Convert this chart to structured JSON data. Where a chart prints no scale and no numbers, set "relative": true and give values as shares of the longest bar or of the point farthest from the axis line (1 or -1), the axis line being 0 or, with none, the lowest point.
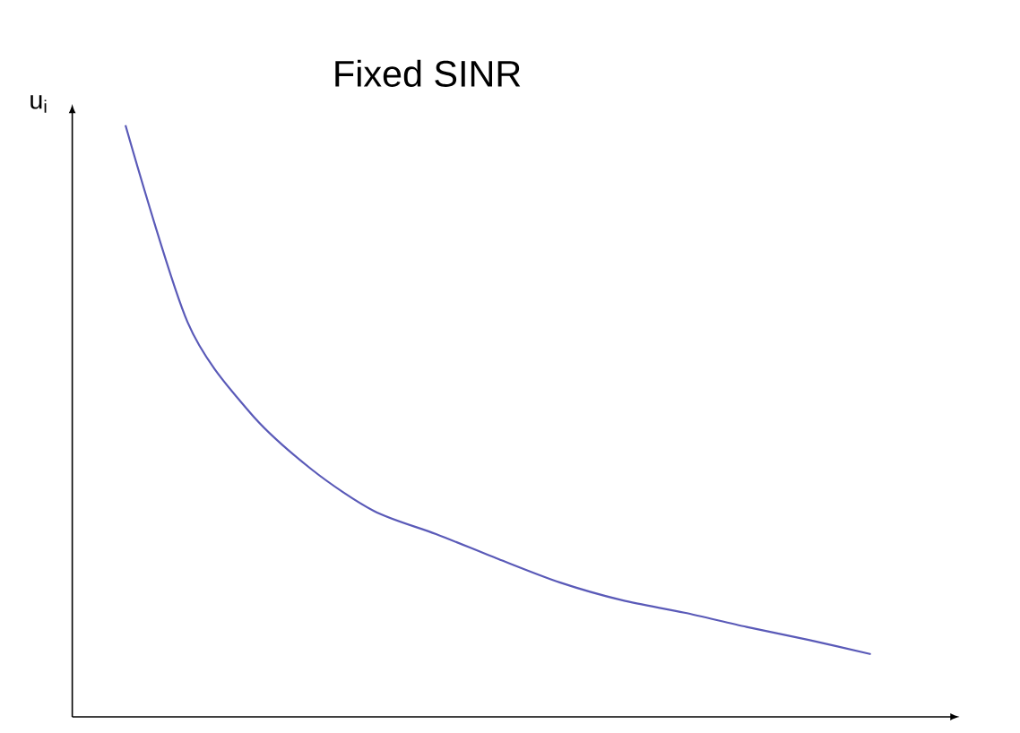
{
  "chart_data": {
    "type": "line",
    "title": "Fixed SINR",
    "ylabel": "u$_{i}$",
    "relative": true,
    "categories": [
      null,
      null,
      null,
      null,
      null,
      null,
      null,
      null,
      null,
      null,
      null,
      null,
      null
    ],
    "series": [
      {
        "color": "#5a5ab8",
        "values": [
          1,
          0.667,
          0.515,
          0.418,
          0.348,
          0.309,
          0.267,
          0.227,
          0.197,
          0.176,
          0.152,
          0.13,
          0.106
        ]
      }
    ]
  }
}
